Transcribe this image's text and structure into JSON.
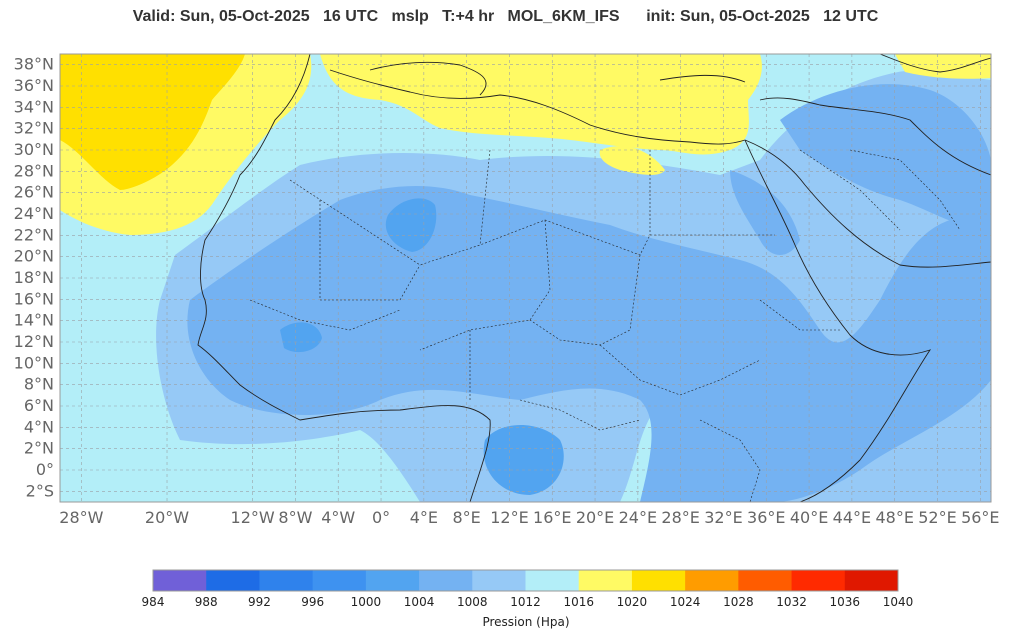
{
  "title": {
    "valid": "Valid: Sun, 05-Oct-2025",
    "valid_time": "16 UTC",
    "field": "mslp",
    "lead": "T:+4 hr",
    "model": "MOL_6KM_IFS",
    "init": "init: Sun, 05-Oct-2025",
    "init_time": "12 UTC"
  },
  "map": {
    "lon_range": [
      -30,
      57
    ],
    "lat_range": [
      -3,
      39
    ],
    "lon_ticks": [
      {
        "value": -28,
        "label": "28°W"
      },
      {
        "value": -20,
        "label": "20°W"
      },
      {
        "value": -12,
        "label": "12°W"
      },
      {
        "value": -8,
        "label": "8°W"
      },
      {
        "value": -4,
        "label": "4°W"
      },
      {
        "value": 0,
        "label": "0°"
      },
      {
        "value": 4,
        "label": "4°E"
      },
      {
        "value": 8,
        "label": "8°E"
      },
      {
        "value": 12,
        "label": "12°E"
      },
      {
        "value": 16,
        "label": "16°E"
      },
      {
        "value": 20,
        "label": "20°E"
      },
      {
        "value": 24,
        "label": "24°E"
      },
      {
        "value": 28,
        "label": "28°E"
      },
      {
        "value": 32,
        "label": "32°E"
      },
      {
        "value": 36,
        "label": "36°E"
      },
      {
        "value": 40,
        "label": "40°E"
      },
      {
        "value": 44,
        "label": "44°E"
      },
      {
        "value": 48,
        "label": "48°E"
      },
      {
        "value": 52,
        "label": "52°E"
      },
      {
        "value": 56,
        "label": "56°E"
      }
    ],
    "lat_ticks": [
      {
        "value": 38,
        "label": "38°N"
      },
      {
        "value": 36,
        "label": "36°N"
      },
      {
        "value": 34,
        "label": "34°N"
      },
      {
        "value": 32,
        "label": "32°N"
      },
      {
        "value": 30,
        "label": "30°N"
      },
      {
        "value": 28,
        "label": "28°N"
      },
      {
        "value": 26,
        "label": "26°N"
      },
      {
        "value": 24,
        "label": "24°N"
      },
      {
        "value": 22,
        "label": "22°N"
      },
      {
        "value": 20,
        "label": "20°N"
      },
      {
        "value": 18,
        "label": "18°N"
      },
      {
        "value": 16,
        "label": "16°N"
      },
      {
        "value": 14,
        "label": "14°N"
      },
      {
        "value": 12,
        "label": "12°N"
      },
      {
        "value": 10,
        "label": "10°N"
      },
      {
        "value": 8,
        "label": "8°N"
      },
      {
        "value": 6,
        "label": "6°N"
      },
      {
        "value": 4,
        "label": "4°N"
      },
      {
        "value": 2,
        "label": "2°N"
      },
      {
        "value": 0,
        "label": "0°"
      },
      {
        "value": -2,
        "label": "2°S"
      }
    ],
    "grid": true,
    "background_color": "#b3eef8"
  },
  "colorbar": {
    "title": "Pression (Hpa)",
    "ticks": [
      "984",
      "988",
      "992",
      "996",
      "1000",
      "1004",
      "1008",
      "1012",
      "1016",
      "1020",
      "1024",
      "1028",
      "1032",
      "1036",
      "1040"
    ],
    "colors": [
      "#7060d8",
      "#1e6ce6",
      "#2f82ec",
      "#3e92f0",
      "#52a4f0",
      "#74b2f2",
      "#96c9f6",
      "#b3eef8",
      "#fffa64",
      "#ffe000",
      "#ff9c00",
      "#ff5c00",
      "#ff2a00",
      "#e01800"
    ]
  }
}
